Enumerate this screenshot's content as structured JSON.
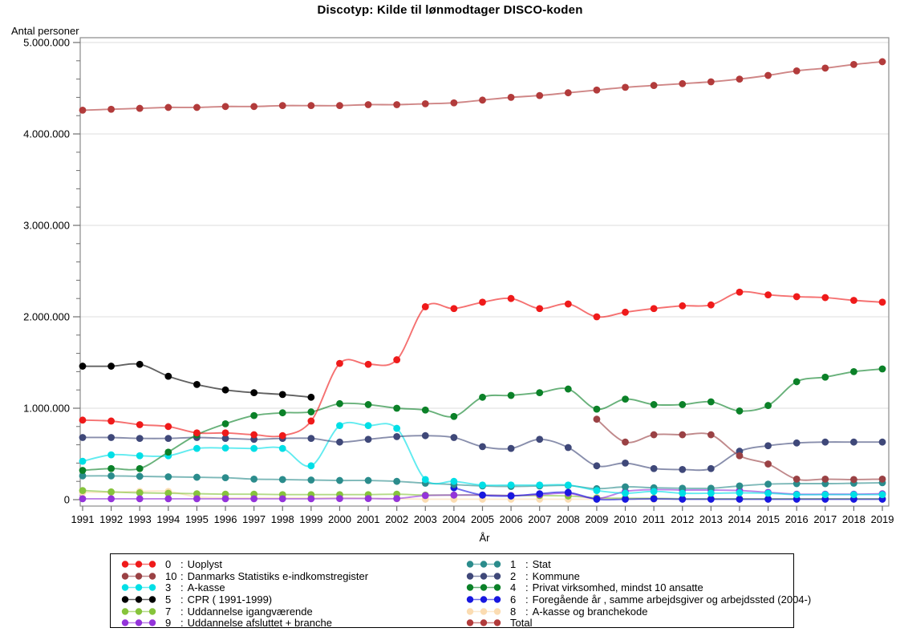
{
  "chart_data": {
    "type": "line",
    "title": "Discotyp: Kilde til lønmodtager DISCO-koden",
    "xlabel": "År",
    "ylabel": "Antal personer",
    "x": [
      1991,
      1992,
      1993,
      1994,
      1995,
      1996,
      1997,
      1998,
      1999,
      2000,
      2001,
      2002,
      2003,
      2004,
      2005,
      2006,
      2007,
      2008,
      2009,
      2010,
      2011,
      2012,
      2013,
      2014,
      2015,
      2016,
      2017,
      2018,
      2019
    ],
    "ylim": [
      0,
      5000000
    ],
    "yticks": [
      {
        "value": 0,
        "label": "0"
      },
      {
        "value": 1000000,
        "label": "1.000.000"
      },
      {
        "value": 2000000,
        "label": "2.000.000"
      },
      {
        "value": 3000000,
        "label": "3.000.000"
      },
      {
        "value": 4000000,
        "label": "4.000.000"
      },
      {
        "value": 5000000,
        "label": "5.000.000"
      }
    ],
    "minor_tick_step": 200000,
    "grid": "horizontal-major",
    "legend_position": "bottom-two-columns",
    "colors": {
      "grid": "#dcdcdc",
      "frame": "#8a8a8a",
      "tick": "#6e6e6e"
    },
    "draw_order": [
      "8",
      "7",
      "9",
      "6",
      "1",
      "3",
      "2",
      "5",
      "4",
      "10",
      "0",
      "total"
    ],
    "series": [
      {
        "id": "0",
        "name": "0 : Uoplyst",
        "color": "#ef1a1a",
        "values": [
          870000,
          860000,
          820000,
          800000,
          730000,
          730000,
          710000,
          700000,
          860000,
          1490000,
          1480000,
          1530000,
          2110000,
          2090000,
          2160000,
          2200000,
          2090000,
          2140000,
          2000000,
          2050000,
          2090000,
          2120000,
          2130000,
          2270000,
          2240000,
          2220000,
          2210000,
          2180000,
          2160000
        ]
      },
      {
        "id": "1",
        "name": "1 : Stat",
        "color": "#2b8c8c",
        "values": [
          260000,
          260000,
          255000,
          250000,
          245000,
          240000,
          225000,
          220000,
          215000,
          210000,
          210000,
          200000,
          180000,
          165000,
          150000,
          145000,
          150000,
          155000,
          120000,
          140000,
          130000,
          125000,
          125000,
          150000,
          170000,
          175000,
          175000,
          180000,
          185000
        ]
      },
      {
        "id": "2",
        "name": "2 : Kommune",
        "color": "#3f4879",
        "values": [
          680000,
          680000,
          670000,
          670000,
          680000,
          670000,
          660000,
          670000,
          670000,
          630000,
          660000,
          690000,
          700000,
          680000,
          580000,
          560000,
          660000,
          570000,
          370000,
          400000,
          340000,
          330000,
          340000,
          530000,
          590000,
          620000,
          630000,
          630000,
          630000
        ]
      },
      {
        "id": "3",
        "name": "3 : A-kasse",
        "color": "#00dfe6",
        "values": [
          420000,
          490000,
          480000,
          480000,
          560000,
          565000,
          560000,
          560000,
          370000,
          810000,
          810000,
          780000,
          220000,
          200000,
          160000,
          160000,
          160000,
          160000,
          100000,
          70000,
          90000,
          70000,
          70000,
          75000,
          70000,
          55000,
          55000,
          55000,
          55000
        ]
      },
      {
        "id": "4",
        "name": "4 : Privat virksomhed, mindst 10 ansatte",
        "color": "#0b8128",
        "values": [
          320000,
          340000,
          340000,
          520000,
          710000,
          830000,
          920000,
          950000,
          960000,
          1050000,
          1040000,
          1000000,
          980000,
          910000,
          1120000,
          1140000,
          1170000,
          1210000,
          990000,
          1100000,
          1040000,
          1040000,
          1070000,
          970000,
          1030000,
          1290000,
          1340000,
          1400000,
          1430000
        ]
      },
      {
        "id": "5",
        "name": "5 : CPR ( 1991-1999)",
        "color": "#000000",
        "values": [
          1460000,
          1460000,
          1480000,
          1350000,
          1260000,
          1200000,
          1170000,
          1150000,
          1120000,
          null,
          null,
          null,
          null,
          null,
          null,
          null,
          null,
          null,
          null,
          null,
          null,
          null,
          null,
          null,
          null,
          null,
          null,
          null,
          null
        ]
      },
      {
        "id": "6",
        "name": "6 : Foregående år , samme arbejdsgiver og arbejdssted (2004-)",
        "color": "#1717e0",
        "values": [
          null,
          null,
          null,
          null,
          null,
          null,
          null,
          null,
          null,
          null,
          null,
          null,
          null,
          130000,
          50000,
          40000,
          65000,
          80000,
          5000,
          5000,
          10000,
          5000,
          5000,
          5000,
          5000,
          5000,
          5000,
          5000,
          5000
        ]
      },
      {
        "id": "7",
        "name": "7 : Uddannelse igangværende",
        "color": "#86c43c",
        "values": [
          100000,
          85000,
          75000,
          70000,
          65000,
          60000,
          60000,
          55000,
          55000,
          55000,
          55000,
          60000,
          50000,
          50000,
          50000,
          45000,
          45000,
          40000,
          20000,
          15000,
          15000,
          10000,
          10000,
          10000,
          10000,
          10000,
          10000,
          10000,
          10000
        ]
      },
      {
        "id": "8",
        "name": "8 : A-kasse og branchekode",
        "color": "#fbdcb2",
        "values": [
          80000,
          80000,
          90000,
          90000,
          30000,
          20000,
          20000,
          20000,
          20000,
          20000,
          15000,
          10000,
          5000,
          5000,
          5000,
          5000,
          5000,
          5000,
          5000,
          5000,
          5000,
          5000,
          5000,
          5000,
          5000,
          5000,
          5000,
          5000,
          5000
        ]
      },
      {
        "id": "9",
        "name": "9 : Uddannelse afsluttet + branche",
        "color": "#9434da",
        "values": [
          10000,
          10000,
          10000,
          10000,
          10000,
          10000,
          10000,
          10000,
          10000,
          12000,
          12000,
          12000,
          45000,
          50000,
          50000,
          45000,
          55000,
          70000,
          10000,
          90000,
          110000,
          105000,
          105000,
          100000,
          80000,
          60000,
          60000,
          60000,
          65000
        ]
      },
      {
        "id": "10",
        "name": "10 : Danmarks Statistiks e-indkomstregister",
        "color": "#9a4144",
        "values": [
          null,
          null,
          null,
          null,
          null,
          null,
          null,
          null,
          null,
          null,
          null,
          null,
          null,
          null,
          null,
          null,
          null,
          null,
          880000,
          630000,
          710000,
          710000,
          710000,
          480000,
          390000,
          225000,
          225000,
          220000,
          225000
        ]
      },
      {
        "id": "total",
        "name": "Total",
        "color": "#b23b3b",
        "values": [
          4260000,
          4270000,
          4280000,
          4290000,
          4290000,
          4300000,
          4300000,
          4310000,
          4310000,
          4310000,
          4320000,
          4320000,
          4330000,
          4340000,
          4370000,
          4400000,
          4420000,
          4450000,
          4480000,
          4510000,
          4530000,
          4550000,
          4570000,
          4600000,
          4640000,
          4690000,
          4720000,
          4760000,
          4790000
        ]
      }
    ],
    "legend": {
      "left": [
        {
          "series": "0",
          "code": "0",
          "label": "Uoplyst"
        },
        {
          "series": "10",
          "code": "10",
          "label": "Danmarks Statistiks e-indkomstregister"
        },
        {
          "series": "3",
          "code": "3",
          "label": "A-kasse"
        },
        {
          "series": "5",
          "code": "5",
          "label": "CPR ( 1991-1999)"
        },
        {
          "series": "7",
          "code": "7",
          "label": "Uddannelse igangværende"
        },
        {
          "series": "9",
          "code": "9",
          "label": "Uddannelse afsluttet + branche"
        }
      ],
      "right": [
        {
          "series": "1",
          "code": "1",
          "label": "Stat"
        },
        {
          "series": "2",
          "code": "2",
          "label": "Kommune"
        },
        {
          "series": "4",
          "code": "4",
          "label": "Privat virksomhed, mindst 10 ansatte"
        },
        {
          "series": "6",
          "code": "6",
          "label": "Foregående år , samme arbejdsgiver og arbejdssted (2004-)"
        },
        {
          "series": "8",
          "code": "8",
          "label": "A-kasse og branchekode"
        },
        {
          "series": "total",
          "code": "Total",
          "label": ""
        }
      ]
    }
  }
}
